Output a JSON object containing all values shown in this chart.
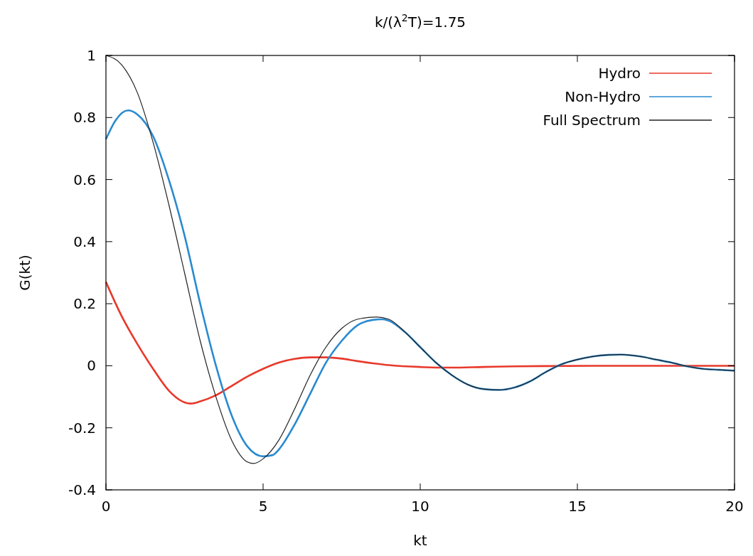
{
  "chart_data": {
    "type": "line",
    "title": "k/(λ$^{2}$T)=1.75",
    "xlabel": "kt",
    "ylabel": "G(kt)",
    "xlim": [
      0,
      20
    ],
    "xticks": [
      0,
      5,
      10,
      15,
      20
    ],
    "ylim": [
      -0.4,
      1
    ],
    "yticks": [
      {
        "value": -0.4,
        "label": "-0.4"
      },
      {
        "value": -0.2,
        "label": "-0.2"
      },
      0,
      0.2,
      0.4,
      0.6,
      0.8,
      1
    ],
    "grid": false,
    "legend": "top right",
    "marker": "none",
    "line_style": "solid",
    "series": [
      {
        "name": "Hydro",
        "color": "#e8392b",
        "x": [
          0,
          0.5,
          1,
          1.5,
          2,
          2.5,
          2.7,
          3,
          3.5,
          4,
          4.5,
          5,
          5.5,
          6,
          6.5,
          7,
          7.5,
          8,
          8.5,
          9,
          10,
          11,
          12,
          13,
          14,
          16,
          18,
          20
        ],
        "values": [
          0.27,
          0.16,
          0.07,
          -0.01,
          -0.08,
          -0.118,
          -0.122,
          -0.115,
          -0.095,
          -0.065,
          -0.035,
          -0.01,
          0.01,
          0.022,
          0.027,
          0.027,
          0.023,
          0.015,
          0.008,
          0.002,
          -0.004,
          -0.006,
          -0.004,
          -0.002,
          -0.001,
          0,
          0,
          0
        ]
      },
      {
        "name": "Non-Hydro",
        "color": "#2a8ad0",
        "x": [
          0,
          0.3,
          0.7,
          1,
          1.5,
          2,
          2.5,
          3,
          3.5,
          4,
          4.5,
          5,
          5.3,
          5.5,
          6,
          6.5,
          7,
          7.5,
          8,
          8.5,
          8.8,
          9,
          9.5,
          10,
          10.5,
          11,
          11.5,
          12,
          12.5,
          13,
          13.5,
          14,
          14.5,
          15,
          15.5,
          16,
          16.4,
          17,
          17.5,
          18,
          18.5,
          19,
          19.5,
          20
        ],
        "values": [
          0.73,
          0.79,
          0.823,
          0.81,
          0.74,
          0.6,
          0.42,
          0.2,
          0,
          -0.16,
          -0.26,
          -0.292,
          -0.288,
          -0.27,
          -0.19,
          -0.09,
          0.01,
          0.08,
          0.13,
          0.148,
          0.15,
          0.145,
          0.11,
          0.06,
          0.01,
          -0.03,
          -0.06,
          -0.075,
          -0.078,
          -0.07,
          -0.05,
          -0.02,
          0.005,
          0.02,
          0.03,
          0.035,
          0.036,
          0.03,
          0.02,
          0.01,
          -0.002,
          -0.01,
          -0.013,
          -0.016
        ]
      },
      {
        "name": "Full Spectrum",
        "color": "#222222",
        "x": [
          0,
          0.5,
          1,
          1.5,
          2,
          2.5,
          3,
          3.5,
          4,
          4.5,
          4.7,
          5,
          5.5,
          6,
          6.5,
          7,
          7.5,
          8,
          8.6,
          9,
          9.5,
          10,
          10.5,
          11,
          11.5,
          12,
          12.5,
          13,
          13.5,
          14,
          14.5,
          15,
          15.5,
          16,
          16.4,
          17,
          17.5,
          18,
          18.5,
          19,
          19.5,
          20
        ],
        "values": [
          1,
          0.97,
          0.88,
          0.72,
          0.52,
          0.3,
          0.08,
          -0.1,
          -0.24,
          -0.31,
          -0.315,
          -0.3,
          -0.24,
          -0.14,
          -0.03,
          0.06,
          0.12,
          0.15,
          0.157,
          0.15,
          0.11,
          0.06,
          0.01,
          -0.03,
          -0.06,
          -0.075,
          -0.078,
          -0.07,
          -0.05,
          -0.02,
          0.005,
          0.02,
          0.03,
          0.035,
          0.036,
          0.03,
          0.02,
          0.01,
          -0.002,
          -0.01,
          -0.013,
          -0.016
        ]
      }
    ]
  }
}
